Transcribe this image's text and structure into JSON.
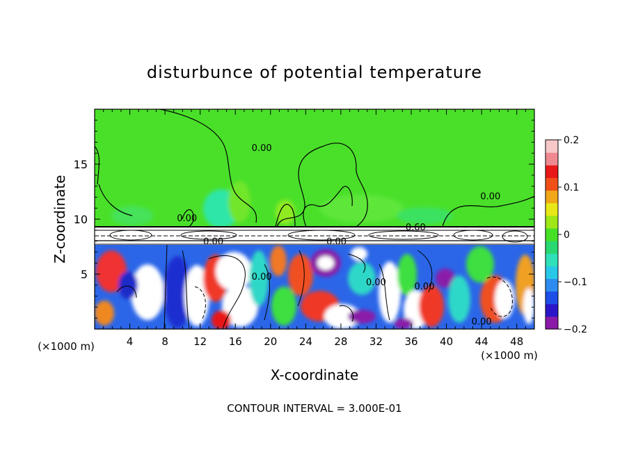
{
  "chart_data": {
    "type": "heatmap",
    "title": "disturbunce of potential temperature",
    "xlabel": "X-coordinate",
    "ylabel": "Z-coordinate",
    "x_unit": "(×1000 m)",
    "y_unit": "(×1000 m)",
    "xlim": [
      0,
      50
    ],
    "ylim": [
      0,
      20
    ],
    "x_ticks": [
      4,
      8,
      12,
      16,
      20,
      24,
      28,
      32,
      36,
      40,
      44,
      48
    ],
    "y_ticks": [
      5,
      10,
      15
    ],
    "colorbar": {
      "range": [
        -0.2,
        0.2
      ],
      "tick_values": [
        0.2,
        0.1,
        0,
        -0.1,
        -0.2
      ],
      "tick_labels": [
        "0.2",
        "0.1",
        "0",
        "−0.1",
        "−0.2"
      ],
      "colors": [
        "#8b1aa8",
        "#2a16c8",
        "#1d4ee8",
        "#2e8cf0",
        "#29c8e8",
        "#2fe0b8",
        "#29d870",
        "#46e026",
        "#9ee818",
        "#e8e818",
        "#f0a818",
        "#f05018",
        "#e81818",
        "#f08890",
        "#f8c8c8"
      ]
    },
    "contour_labels": [
      {
        "value": "0.00",
        "x": 19.0,
        "y": 16.2
      },
      {
        "value": "0.00",
        "x": 45.0,
        "y": 11.8
      },
      {
        "value": "0.00",
        "x": 10.5,
        "y": 9.8
      },
      {
        "value": "0.60",
        "x": 36.5,
        "y": 9.0
      },
      {
        "value": "0.00",
        "x": 13.5,
        "y": 7.7
      },
      {
        "value": "0.00",
        "x": 27.5,
        "y": 7.7
      },
      {
        "value": "0.00",
        "x": 19.0,
        "y": 4.5
      },
      {
        "value": "0.00",
        "x": 32.0,
        "y": 4.0
      },
      {
        "value": "0.00",
        "x": 37.5,
        "y": 3.6
      },
      {
        "value": "0.00",
        "x": 44.0,
        "y": 0.4
      }
    ],
    "grid": false,
    "legend": "right"
  },
  "footer": "CONTOUR INTERVAL = 3.000E-01"
}
